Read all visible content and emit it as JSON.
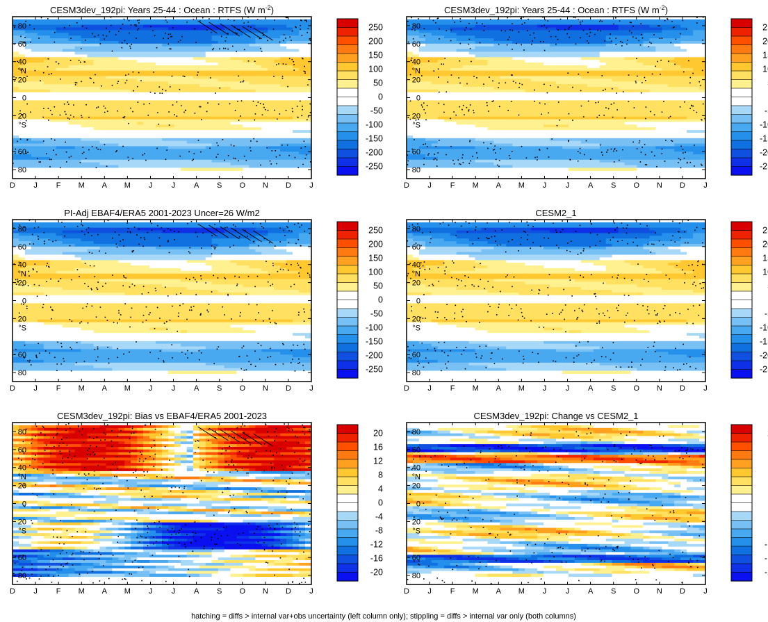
{
  "footnote": "hatching = diffs > internal var+obs uncertainty (left column only); stippling = diffs > internal var only (both columns)",
  "chart_data": [
    {
      "type": "heatmap",
      "title": "CESM3dev_192pi: Years 25-44 : Ocean : RTFS (W m",
      "title_sup": "-2",
      "title_tail": ")",
      "field": "mean",
      "seed": 11,
      "hatched": true
    },
    {
      "type": "heatmap",
      "title": "CESM3dev_192pi: Years 25-44 : Ocean : RTFS (W m",
      "title_sup": "-2",
      "title_tail": ")",
      "field": "mean",
      "seed": 23,
      "hatched": false
    },
    {
      "type": "heatmap",
      "title": "PI-Adj EBAF4/ERA5 2001-2023 Uncer=26 W/m2",
      "title_sup": "",
      "title_tail": "",
      "field": "mean",
      "seed": 37,
      "hatched": true
    },
    {
      "type": "heatmap",
      "title": "CESM2_1",
      "title_sup": "",
      "title_tail": "",
      "field": "mean",
      "seed": 41,
      "hatched": false
    },
    {
      "type": "heatmap",
      "title": "CESM3dev_192pi: Bias vs EBAF4/ERA5 2001-2023",
      "title_sup": "",
      "title_tail": "",
      "field": "bias",
      "seed": 53,
      "hatched": true
    },
    {
      "type": "heatmap",
      "title": "CESM3dev_192pi: Change vs CESM2_1",
      "title_sup": "",
      "title_tail": "",
      "field": "change",
      "seed": 67,
      "hatched": false
    }
  ],
  "axes": {
    "x_ticks": [
      "D",
      "J",
      "F",
      "M",
      "A",
      "M",
      "J",
      "J",
      "A",
      "S",
      "O",
      "N",
      "D",
      "J"
    ],
    "y_ticks": [
      "80",
      "60",
      "40",
      "°N",
      "20",
      "0",
      "20",
      "°S",
      "60",
      "80"
    ],
    "y_range": [
      -90,
      90
    ]
  },
  "colorbars": {
    "mean": {
      "labels": [
        "250",
        "200",
        "150",
        "100",
        "50",
        "0",
        "-50",
        "-100",
        "-150",
        "-200",
        "-250"
      ],
      "colors": [
        "#d80000",
        "#ee2200",
        "#ff5000",
        "#ff7a10",
        "#ffa020",
        "#ffc830",
        "#ffe060",
        "#fff090",
        "#ffffff",
        "#ffffff",
        "#a8d8f8",
        "#78c0f4",
        "#48a8f0",
        "#2490ec",
        "#1070e0",
        "#1050e0",
        "#0e30e6",
        "#0a10f0"
      ]
    },
    "bias": {
      "labels": [
        "20",
        "16",
        "12",
        "8",
        "4",
        "0",
        "-4",
        "-8",
        "-12",
        "-16",
        "-20"
      ],
      "colors": [
        "#d80000",
        "#ee2200",
        "#ff5000",
        "#ff7a10",
        "#ffa020",
        "#ffc830",
        "#ffe060",
        "#fff090",
        "#ffffff",
        "#ffffff",
        "#a8d8f8",
        "#78c0f4",
        "#48a8f0",
        "#2490ec",
        "#1070e0",
        "#1050e0",
        "#0e30e6",
        "#0a10f0"
      ]
    }
  }
}
